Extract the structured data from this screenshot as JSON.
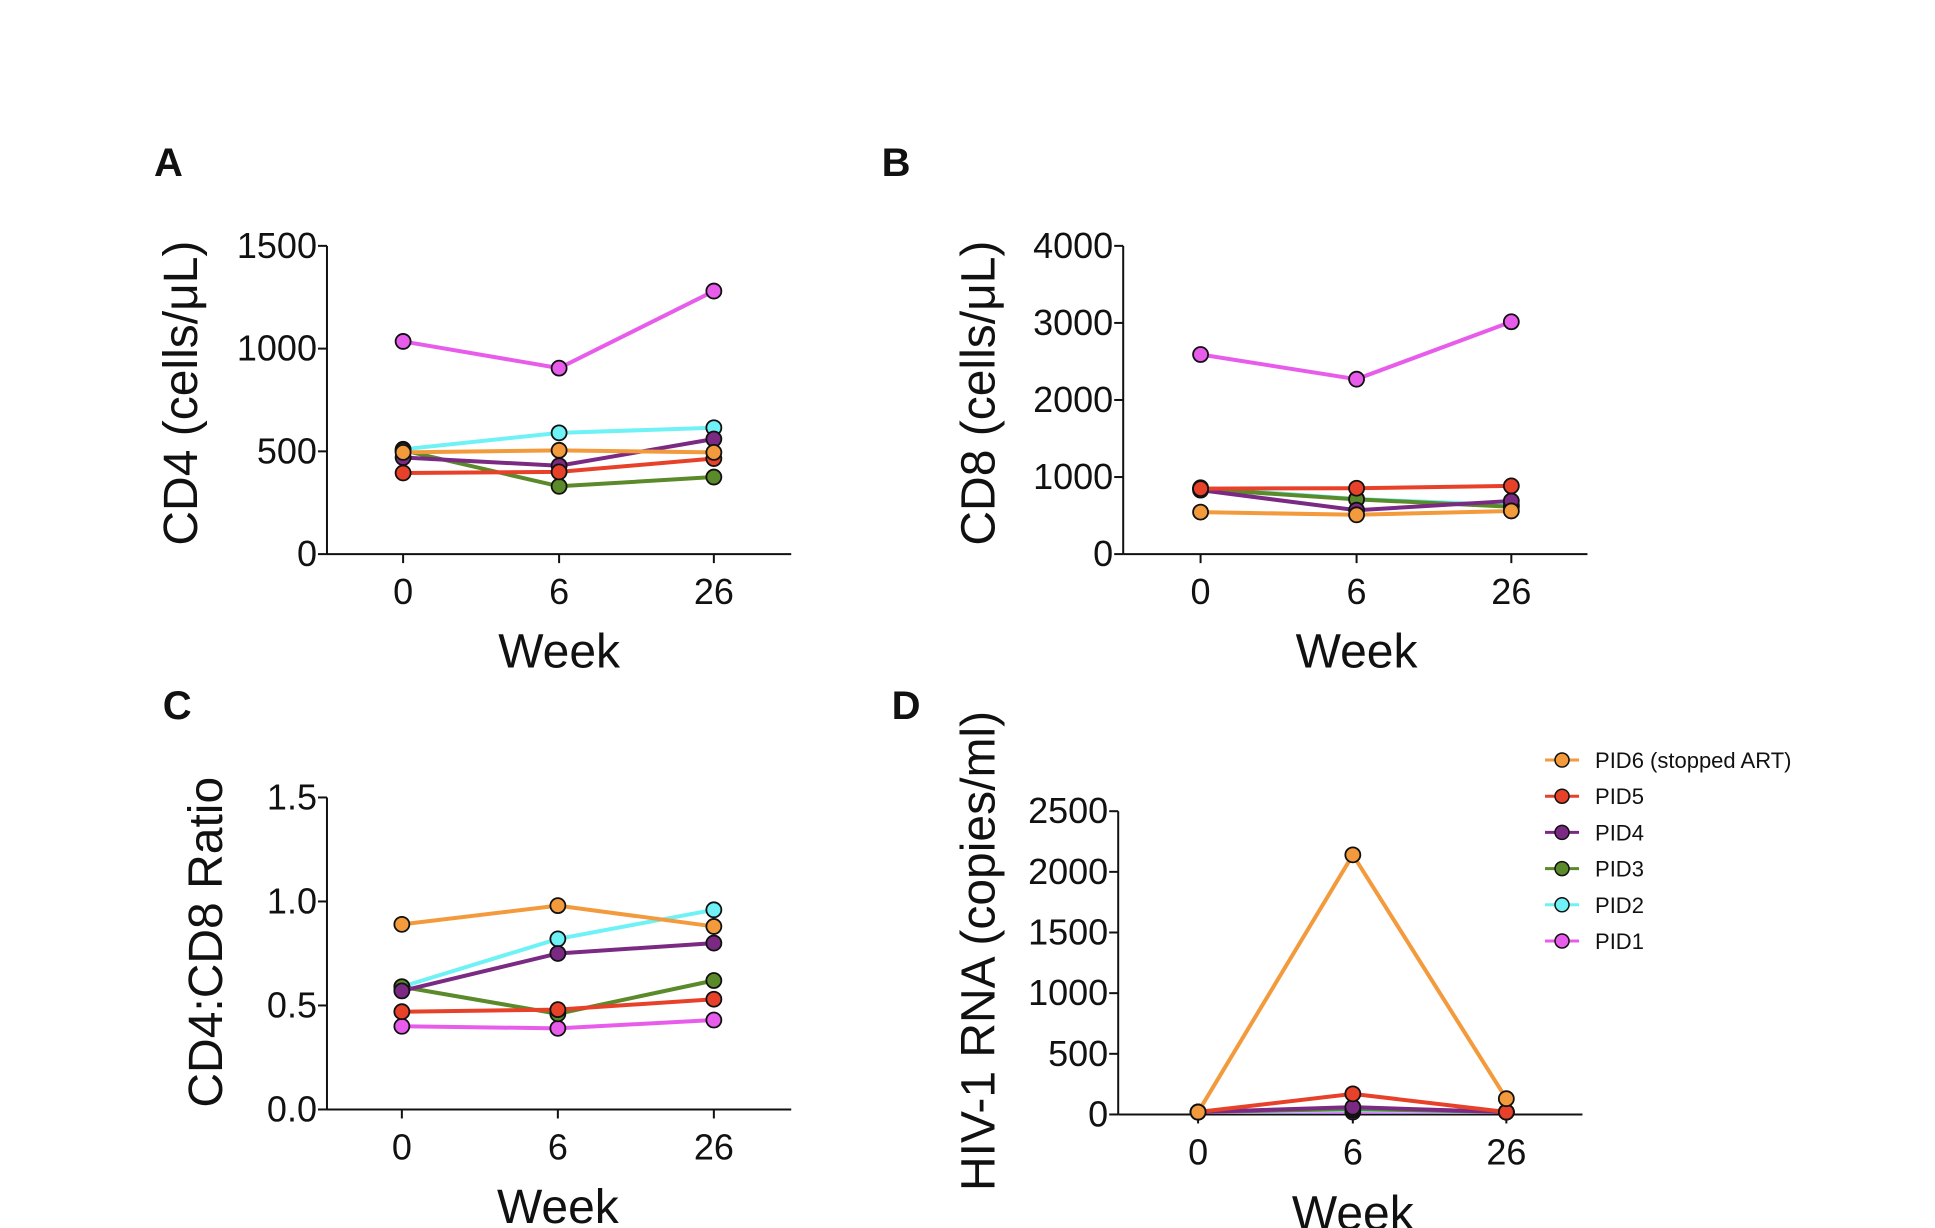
{
  "chart_data": [
    {
      "panel": "A",
      "type": "line",
      "title": "",
      "xlabel": "Week",
      "ylabel": "CD4 (cells/μL)",
      "categories": [
        "0",
        "6",
        "26"
      ],
      "ylim": [
        0,
        1500
      ],
      "yticks": [
        0,
        500,
        1000,
        1500
      ],
      "yticklabels": [
        "0",
        "500",
        "1000",
        "1500"
      ],
      "series": [
        {
          "name": "PID6 (stopped ART)",
          "values": [
            495,
            505,
            495
          ]
        },
        {
          "name": "PID5",
          "values": [
            395,
            400,
            465
          ]
        },
        {
          "name": "PID4",
          "values": [
            470,
            430,
            560
          ]
        },
        {
          "name": "PID3",
          "values": [
            505,
            330,
            375
          ]
        },
        {
          "name": "PID2",
          "values": [
            510,
            590,
            615
          ]
        },
        {
          "name": "PID1",
          "values": [
            1035,
            905,
            1280
          ]
        }
      ]
    },
    {
      "panel": "B",
      "type": "line",
      "title": "",
      "xlabel": "Week",
      "ylabel": "CD8 (cells/μL)",
      "categories": [
        "0",
        "6",
        "26"
      ],
      "ylim": [
        0,
        4000
      ],
      "yticks": [
        0,
        1000,
        2000,
        3000,
        4000
      ],
      "yticklabels": [
        "0",
        "1000",
        "2000",
        "3000",
        "4000"
      ],
      "series": [
        {
          "name": "PID6 (stopped ART)",
          "values": [
            545,
            510,
            560
          ]
        },
        {
          "name": "PID5",
          "values": [
            850,
            855,
            885
          ]
        },
        {
          "name": "PID4",
          "values": [
            830,
            570,
            690
          ]
        },
        {
          "name": "PID3",
          "values": [
            845,
            710,
            615
          ]
        },
        {
          "name": "PID2",
          "values": [
            860,
            715,
            635
          ]
        },
        {
          "name": "PID1",
          "values": [
            2590,
            2270,
            3015
          ]
        }
      ]
    },
    {
      "panel": "C",
      "type": "line",
      "title": "",
      "xlabel": "Week",
      "ylabel": "CD4:CD8 Ratio",
      "categories": [
        "0",
        "6",
        "26"
      ],
      "ylim": [
        0,
        1.5
      ],
      "yticks": [
        0,
        0.5,
        1.0,
        1.5
      ],
      "yticklabels": [
        "0.0",
        "0.5",
        "1.0",
        "1.5"
      ],
      "series": [
        {
          "name": "PID6 (stopped ART)",
          "values": [
            0.89,
            0.98,
            0.88
          ]
        },
        {
          "name": "PID5",
          "values": [
            0.47,
            0.48,
            0.53
          ]
        },
        {
          "name": "PID4",
          "values": [
            0.57,
            0.75,
            0.8
          ]
        },
        {
          "name": "PID3",
          "values": [
            0.59,
            0.46,
            0.62
          ]
        },
        {
          "name": "PID2",
          "values": [
            0.59,
            0.82,
            0.96
          ]
        },
        {
          "name": "PID1",
          "values": [
            0.4,
            0.39,
            0.43
          ]
        }
      ]
    },
    {
      "panel": "D",
      "type": "line",
      "title": "",
      "xlabel": "Week",
      "ylabel": "HIV-1 RNA (copies/ml)",
      "categories": [
        "0",
        "6",
        "26"
      ],
      "ylim": [
        0,
        2500
      ],
      "yticks": [
        0,
        500,
        1000,
        1500,
        2000,
        2500
      ],
      "yticklabels": [
        "0",
        "500",
        "1000",
        "1500",
        "2000",
        "2500"
      ],
      "legend": "right",
      "series": [
        {
          "name": "PID6 (stopped ART)",
          "values": [
            20,
            2140,
            130
          ]
        },
        {
          "name": "PID5",
          "values": [
            20,
            170,
            20
          ]
        },
        {
          "name": "PID4",
          "values": [
            20,
            60,
            20
          ]
        },
        {
          "name": "PID3",
          "values": [
            20,
            45,
            20
          ]
        },
        {
          "name": "PID2",
          "values": [
            20,
            35,
            20
          ]
        },
        {
          "name": "PID1",
          "values": [
            20,
            20,
            20
          ]
        }
      ]
    }
  ],
  "series_colors": {
    "PID6 (stopped ART)": "#F39A3C",
    "PID5": "#E8412A",
    "PID4": "#7B2A84",
    "PID3": "#5A8A2A",
    "PID2": "#6EF2F5",
    "PID1": "#E85CEB"
  },
  "legend_entries": [
    "PID6 (stopped ART)",
    "PID5",
    "PID4",
    "PID3",
    "PID2",
    "PID1"
  ]
}
